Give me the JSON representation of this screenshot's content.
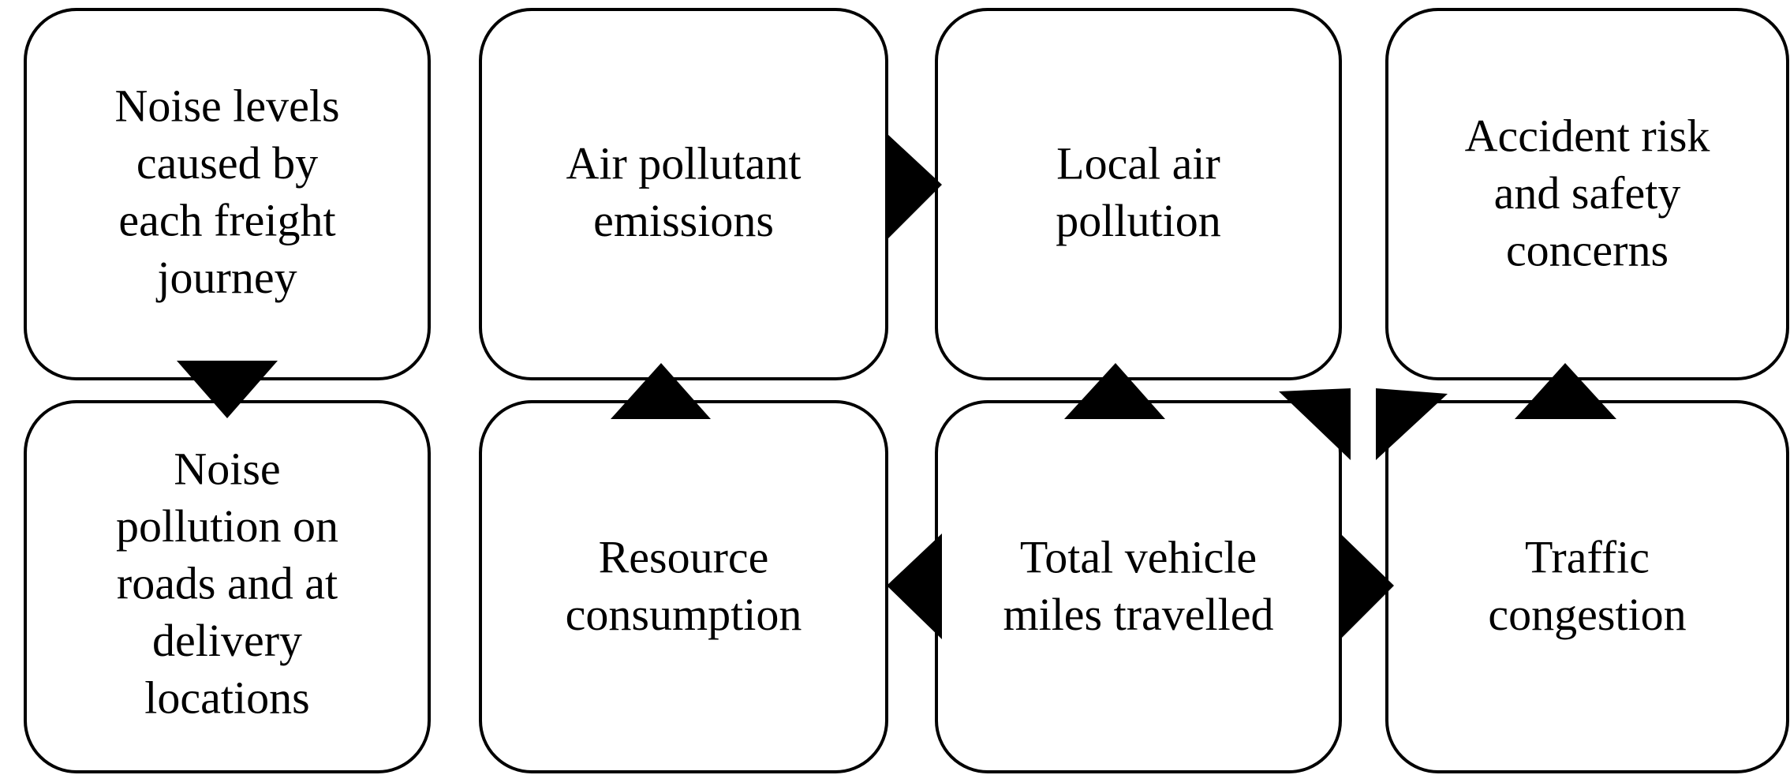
{
  "nodes": [
    {
      "lines": [
        "Noise levels",
        "caused by",
        "each freight",
        "journey"
      ]
    },
    {
      "lines": [
        "Air pollutant",
        "emissions"
      ]
    },
    {
      "lines": [
        "Local air",
        "pollution"
      ]
    },
    {
      "lines": [
        "Accident risk",
        "and safety",
        "concerns"
      ]
    },
    {
      "lines": [
        "Noise",
        "pollution on",
        "roads and at",
        "delivery",
        "locations"
      ]
    },
    {
      "lines": [
        "Resource",
        "consumption"
      ]
    },
    {
      "lines": [
        "Total vehicle",
        "miles travelled"
      ]
    },
    {
      "lines": [
        "Traffic",
        "congestion"
      ]
    }
  ]
}
